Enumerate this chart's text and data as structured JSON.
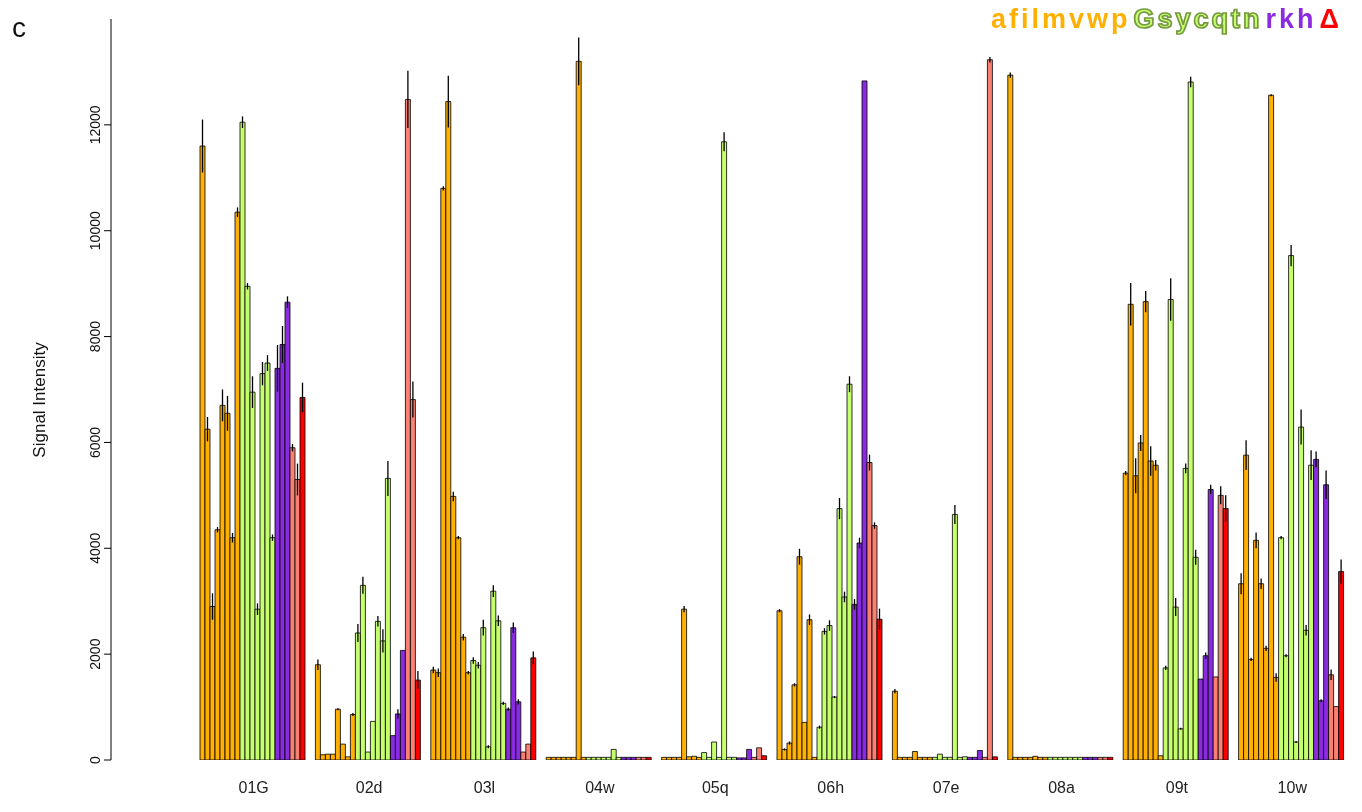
{
  "chart_data": {
    "type": "bar",
    "title": "c",
    "ylabel": "Signal Intensity",
    "annotations": [
      "afilmvwp",
      "Gsycqtn",
      "rkh",
      "Δ"
    ],
    "categories": [
      "01G",
      "02d",
      "03l",
      "04w",
      "05q",
      "06h",
      "07e",
      "08a",
      "09t",
      "10w"
    ],
    "series": [
      {
        "color": "#ffb000",
        "values": [
          11600,
          1800,
          1700,
          50,
          50,
          2820,
          1300,
          12940,
          5420,
          3330
        ],
        "errors": [
          500,
          100,
          60,
          null,
          null,
          30,
          40,
          50,
          40,
          200
        ]
      },
      {
        "color": "#ffb000",
        "values": [
          6250,
          100,
          1650,
          50,
          50,
          200,
          50,
          50,
          8610,
          5760
        ],
        "errors": [
          230,
          null,
          80,
          null,
          null,
          20,
          null,
          null,
          400,
          280
        ]
      },
      {
        "color": "#ffb000",
        "values": [
          2900,
          110,
          10800,
          50,
          50,
          320,
          50,
          50,
          5370,
          1900
        ],
        "errors": [
          250,
          null,
          40,
          null,
          null,
          30,
          null,
          null,
          330,
          30
        ]
      },
      {
        "color": "#ffb000",
        "values": [
          4350,
          110,
          12440,
          50,
          50,
          1420,
          50,
          50,
          5990,
          4150
        ],
        "errors": [
          50,
          null,
          490,
          null,
          null,
          30,
          null,
          null,
          150,
          150
        ]
      },
      {
        "color": "#ffb000",
        "values": [
          6700,
          960,
          4980,
          50,
          2850,
          3840,
          160,
          50,
          8660,
          3330
        ],
        "errors": [
          300,
          20,
          90,
          null,
          60,
          150,
          null,
          null,
          200,
          100
        ]
      },
      {
        "color": "#ffb000",
        "values": [
          6550,
          300,
          4200,
          50,
          60,
          710,
          50,
          70,
          5650,
          2110
        ],
        "errors": [
          330,
          null,
          30,
          null,
          null,
          null,
          null,
          null,
          280,
          50
        ]
      },
      {
        "color": "#ffb000",
        "values": [
          4200,
          60,
          2320,
          13200,
          70,
          2650,
          50,
          50,
          5570,
          12560
        ],
        "errors": [
          90,
          null,
          60,
          450,
          null,
          100,
          null,
          null,
          100,
          20
        ]
      },
      {
        "color": "#ffb000",
        "values": [
          10350,
          860,
          1650,
          50,
          50,
          50,
          50,
          50,
          80,
          1560
        ],
        "errors": [
          90,
          30,
          30,
          null,
          null,
          null,
          null,
          null,
          null,
          80
        ]
      },
      {
        "color": "#c6ff6e",
        "values": [
          12050,
          2400,
          1880,
          50,
          140,
          620,
          50,
          50,
          1740,
          4200
        ],
        "errors": [
          110,
          170,
          60,
          null,
          null,
          30,
          null,
          null,
          40,
          30
        ]
      },
      {
        "color": "#c6ff6e",
        "values": [
          8950,
          3300,
          1790,
          50,
          50,
          2430,
          110,
          50,
          8700,
          1970
        ],
        "errors": [
          60,
          160,
          60,
          null,
          null,
          60,
          null,
          null,
          400,
          30
        ]
      },
      {
        "color": "#c6ff6e",
        "values": [
          6950,
          150,
          2500,
          50,
          340,
          2540,
          50,
          50,
          2890,
          9530
        ],
        "errors": [
          300,
          null,
          150,
          null,
          null,
          100,
          null,
          null,
          170,
          200
        ]
      },
      {
        "color": "#c6ff6e",
        "values": [
          2850,
          730,
          250,
          50,
          50,
          1190,
          50,
          50,
          590,
          340
        ],
        "errors": [
          110,
          null,
          30,
          null,
          null,
          20,
          null,
          null,
          20,
          20
        ]
      },
      {
        "color": "#c6ff6e",
        "values": [
          7300,
          2620,
          3190,
          50,
          11680,
          4750,
          4640,
          50,
          5510,
          6290
        ],
        "errors": [
          220,
          100,
          110,
          null,
          180,
          200,
          180,
          null,
          90,
          330
        ]
      },
      {
        "color": "#c6ff6e",
        "values": [
          7500,
          2250,
          2630,
          200,
          50,
          3080,
          50,
          50,
          12810,
          2450
        ],
        "errors": [
          150,
          220,
          100,
          null,
          null,
          100,
          null,
          null,
          100,
          100
        ]
      },
      {
        "color": "#c6ff6e",
        "values": [
          4200,
          5320,
          1070,
          50,
          50,
          7100,
          60,
          50,
          3830,
          5570
        ],
        "errors": [
          60,
          330,
          30,
          null,
          null,
          150,
          null,
          null,
          140,
          280
        ]
      },
      {
        "color": "#8a2be2",
        "values": [
          7400,
          460,
          960,
          50,
          40,
          2940,
          50,
          50,
          1530,
          5680
        ],
        "errors": [
          440,
          null,
          30,
          null,
          null,
          100,
          null,
          null,
          null,
          150
        ]
      },
      {
        "color": "#8a2be2",
        "values": [
          7850,
          870,
          2500,
          50,
          40,
          4100,
          50,
          50,
          1970,
          1120
        ],
        "errors": [
          350,
          90,
          100,
          null,
          null,
          100,
          null,
          null,
          60,
          30
        ]
      },
      {
        "color": "#8a2be2",
        "values": [
          8650,
          2070,
          1100,
          50,
          200,
          12830,
          180,
          50,
          5110,
          5200
        ],
        "errors": [
          110,
          null,
          50,
          null,
          null,
          null,
          null,
          null,
          90,
          270
        ]
      },
      {
        "color": "#fa8072",
        "values": [
          5900,
          12480,
          150,
          50,
          50,
          5620,
          50,
          50,
          1570,
          1610
        ],
        "errors": [
          70,
          540,
          null,
          null,
          null,
          150,
          null,
          null,
          null,
          100
        ]
      },
      {
        "color": "#fa8072",
        "values": [
          5300,
          6810,
          300,
          50,
          230,
          4430,
          13230,
          50,
          5000,
          1010
        ],
        "errors": [
          300,
          340,
          null,
          null,
          null,
          60,
          50,
          null,
          170,
          null
        ]
      },
      {
        "color": "#ff0000",
        "values": [
          6850,
          1510,
          1930,
          50,
          80,
          2660,
          60,
          50,
          4750,
          3560
        ],
        "errors": [
          280,
          170,
          120,
          null,
          null,
          200,
          null,
          null,
          250,
          230
        ]
      }
    ],
    "ylim": [
      0,
      14000
    ],
    "yticks": [
      0,
      2000,
      4000,
      6000,
      8000,
      10000,
      12000
    ]
  }
}
